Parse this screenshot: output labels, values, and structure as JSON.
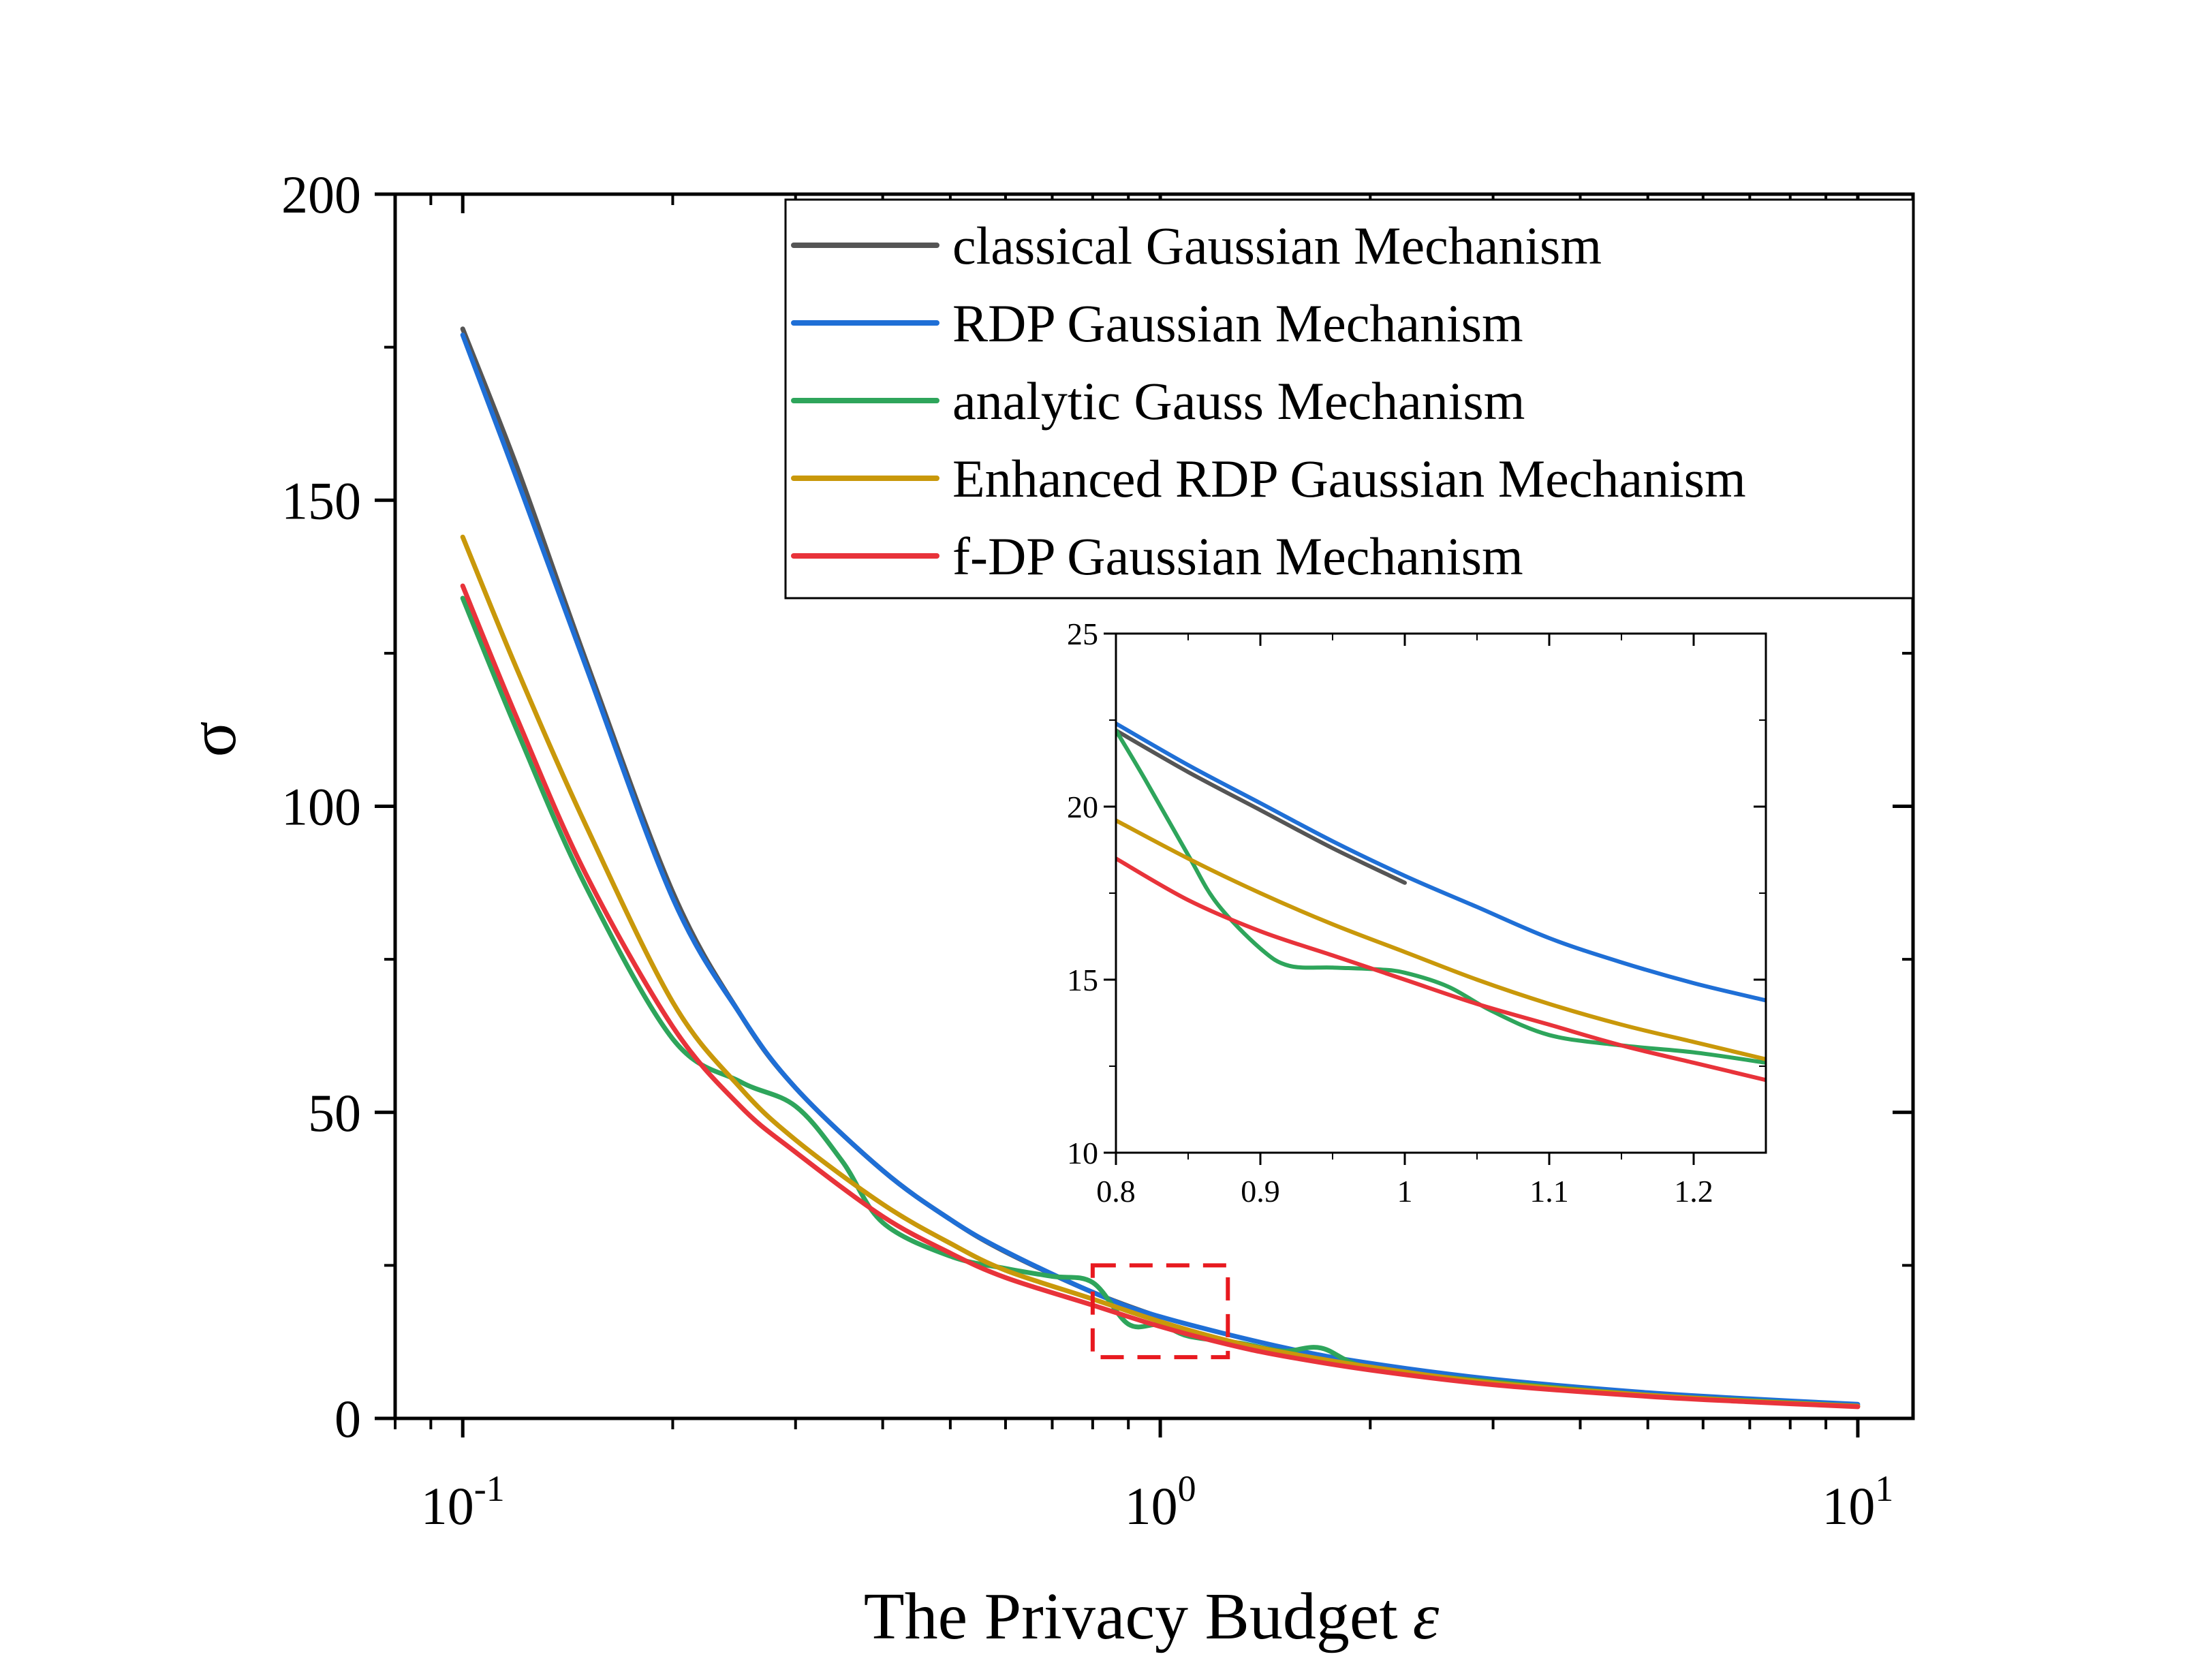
{
  "chart_data": [
    {
      "type": "line",
      "xlabel": "The Privacy Budget",
      "xlabel_symbol": "ε",
      "ylabel": "σ",
      "xscale": "log",
      "xlim": [
        0.08,
        12.0
      ],
      "ylim": [
        0,
        200
      ],
      "xticks": [
        {
          "value": 0.1,
          "base": "10",
          "exp": "-1"
        },
        {
          "value": 1.0,
          "base": "10",
          "exp": "0"
        },
        {
          "value": 10.0,
          "base": "10",
          "exp": "1"
        }
      ],
      "yticks": [
        {
          "value": 0,
          "label": "0"
        },
        {
          "value": 50,
          "label": "50"
        },
        {
          "value": 100,
          "label": "100"
        },
        {
          "value": 150,
          "label": "150"
        },
        {
          "value": 200,
          "label": "200"
        }
      ],
      "grid": false,
      "legend_position": "top-right",
      "series": [
        {
          "name": "classical Gaussian Mechanism",
          "color": "#555555",
          "x": [
            0.1,
            0.12,
            0.15,
            0.2,
            0.25,
            0.3,
            0.4,
            0.5,
            0.6,
            0.8,
            1.0
          ],
          "y": [
            178,
            155,
            124,
            86,
            66,
            54,
            40.5,
            32.5,
            27.2,
            20.6,
            16.5
          ]
        },
        {
          "name": "RDP Gaussian Mechanism",
          "color": "#1f6fd6",
          "x": [
            0.1,
            0.12,
            0.15,
            0.2,
            0.25,
            0.3,
            0.4,
            0.5,
            0.6,
            0.8,
            1.0,
            1.5,
            2.0,
            3.0,
            5.0,
            7.0,
            10.0
          ],
          "y": [
            177,
            153,
            123,
            85,
            66,
            54,
            40.5,
            32.5,
            27.3,
            20.6,
            16.6,
            11.6,
            9.0,
            6.4,
            4.2,
            3.2,
            2.3
          ]
        },
        {
          "name": "analytic Gauss Mechanism",
          "color": "#2ea55b",
          "x": [
            0.1,
            0.12,
            0.15,
            0.2,
            0.25,
            0.3,
            0.35,
            0.4,
            0.5,
            0.6,
            0.7,
            0.8,
            0.9,
            1.0,
            1.1,
            1.3,
            1.5,
            1.7,
            2.0,
            3.0,
            5.0,
            7.0,
            10.0
          ],
          "y": [
            134,
            112,
            87,
            62,
            55,
            51,
            42,
            32,
            26.5,
            24.5,
            23.2,
            22.2,
            15.4,
            15.3,
            13.4,
            12.3,
            11.0,
            11.5,
            8.2,
            6.0,
            3.8,
            2.9,
            2.0
          ]
        },
        {
          "name": "Enhanced RDP Gaussian Mechanism",
          "color": "#c9980a",
          "x": [
            0.1,
            0.12,
            0.15,
            0.2,
            0.25,
            0.3,
            0.4,
            0.5,
            0.6,
            0.8,
            1.0,
            1.25,
            1.5,
            2.0,
            3.0,
            5.0,
            7.0,
            10.0
          ],
          "y": [
            144,
            122,
            97,
            68,
            54,
            45.5,
            35,
            28.6,
            24.2,
            19.5,
            15.8,
            12.7,
            10.8,
            8.4,
            5.8,
            3.8,
            2.8,
            2.0
          ]
        },
        {
          "name": "f-DP Gaussian Mechanism",
          "color": "#e8333a",
          "x": [
            0.1,
            0.12,
            0.15,
            0.2,
            0.25,
            0.3,
            0.4,
            0.5,
            0.6,
            0.8,
            1.0,
            1.25,
            1.5,
            2.0,
            3.0,
            5.0,
            7.0,
            10.0
          ],
          "y": [
            136,
            114,
            89,
            64,
            51,
            43.5,
            33,
            27,
            23,
            18.5,
            15.0,
            12.1,
            10.2,
            7.9,
            5.5,
            3.6,
            2.7,
            1.9
          ]
        }
      ],
      "annotations": [
        {
          "type": "dashed-box",
          "color": "#e8191f",
          "x_range": [
            0.8,
            1.25
          ],
          "y_range": [
            10,
            25
          ]
        }
      ]
    },
    {
      "type": "line",
      "xlim": [
        0.8,
        1.25
      ],
      "ylim": [
        10,
        25
      ],
      "xticks": [
        {
          "value": 0.8,
          "label": "0.8"
        },
        {
          "value": 0.9,
          "label": "0.9"
        },
        {
          "value": 1.0,
          "label": "1"
        },
        {
          "value": 1.1,
          "label": "1.1"
        },
        {
          "value": 1.2,
          "label": "1.2"
        }
      ],
      "yticks": [
        {
          "value": 10,
          "label": "10"
        },
        {
          "value": 15,
          "label": "15"
        },
        {
          "value": 20,
          "label": "20"
        },
        {
          "value": 25,
          "label": "25"
        }
      ],
      "grid": false,
      "series": [
        {
          "name": "classical Gaussian Mechanism",
          "color": "#555555",
          "x": [
            0.8,
            0.85,
            0.9,
            0.95,
            1.0
          ],
          "y": [
            22.2,
            21.0,
            19.9,
            18.8,
            17.8
          ]
        },
        {
          "name": "RDP Gaussian Mechanism",
          "color": "#1f6fd6",
          "x": [
            0.8,
            0.85,
            0.9,
            0.95,
            1.0,
            1.05,
            1.1,
            1.15,
            1.2,
            1.25
          ],
          "y": [
            22.4,
            21.2,
            20.1,
            19.0,
            18.0,
            17.1,
            16.2,
            15.5,
            14.9,
            14.4
          ]
        },
        {
          "name": "analytic Gauss Mechanism",
          "color": "#2ea55b",
          "x": [
            0.8,
            0.82,
            0.85,
            0.87,
            0.9,
            0.92,
            0.95,
            0.98,
            1.0,
            1.03,
            1.06,
            1.1,
            1.15,
            1.2,
            1.25
          ],
          "y": [
            22.2,
            20.8,
            18.6,
            17.2,
            15.9,
            15.4,
            15.35,
            15.3,
            15.2,
            14.8,
            14.1,
            13.4,
            13.1,
            12.9,
            12.6
          ]
        },
        {
          "name": "Enhanced RDP Gaussian Mechanism",
          "color": "#c9980a",
          "x": [
            0.8,
            0.85,
            0.9,
            0.95,
            1.0,
            1.05,
            1.1,
            1.15,
            1.2,
            1.25
          ],
          "y": [
            19.6,
            18.5,
            17.5,
            16.6,
            15.8,
            15.0,
            14.3,
            13.7,
            13.2,
            12.7
          ]
        },
        {
          "name": "f-DP Gaussian Mechanism",
          "color": "#e8333a",
          "x": [
            0.8,
            0.85,
            0.9,
            0.95,
            1.0,
            1.05,
            1.1,
            1.15,
            1.2,
            1.25
          ],
          "y": [
            18.5,
            17.3,
            16.4,
            15.7,
            15.0,
            14.3,
            13.7,
            13.1,
            12.6,
            12.1
          ]
        }
      ]
    }
  ]
}
